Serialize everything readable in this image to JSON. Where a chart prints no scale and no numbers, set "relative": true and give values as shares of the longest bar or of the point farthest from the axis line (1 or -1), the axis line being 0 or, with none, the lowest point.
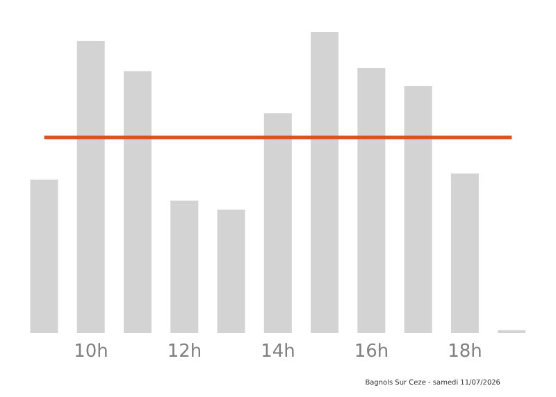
{
  "chart_data": {
    "type": "bar",
    "relative": true,
    "categories": [
      null,
      "10h",
      null,
      "12h",
      null,
      "14h",
      null,
      "16h",
      null,
      "18h",
      null
    ],
    "values": [
      0.51,
      0.97,
      0.87,
      0.44,
      0.41,
      0.73,
      1,
      0.88,
      0.82,
      0.53,
      0.01
    ],
    "color": "#d3d3d3",
    "ref_lines": [
      {
        "axis": "y",
        "value": 0.65,
        "color": "#d9531e"
      }
    ],
    "annotations": [
      "Bagnols Sur Ceze - samedi 11/07/2026"
    ],
    "grid": false,
    "legend": false
  }
}
